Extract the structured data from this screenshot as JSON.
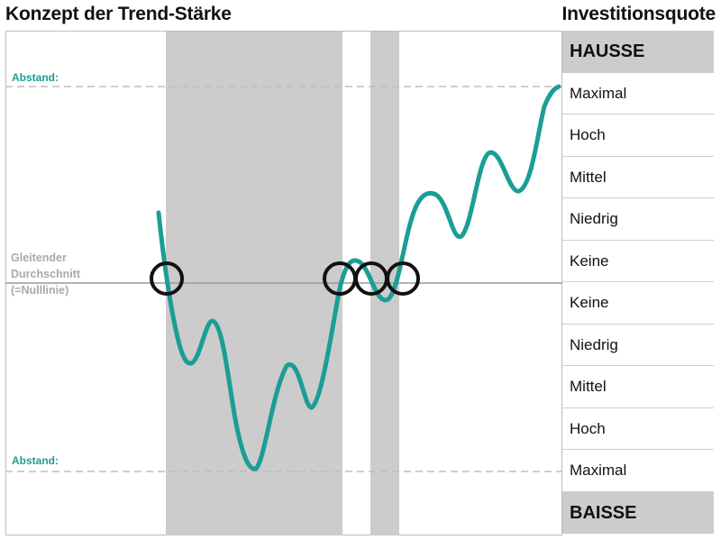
{
  "title_left": "Konzept der Trend-Stärke",
  "title_right": "Investitionsquote",
  "labels": {
    "abstand_top": "Abstand:",
    "abstand_bottom": "Abstand:",
    "moving_average": [
      "Gleitender",
      "Durchschnitt",
      "(=Nulllinie)"
    ]
  },
  "scale": {
    "hausse": "HAUSSE",
    "upper": [
      "Maximal",
      "Hoch",
      "Mittel",
      "Niedrig",
      "Keine"
    ],
    "lower": [
      "Keine",
      "Niedrig",
      "Mittel",
      "Hoch",
      "Maximal"
    ],
    "baisse": "BAISSE"
  },
  "colors": {
    "curve": "#1a9e95",
    "shade": "#cccccc",
    "grid": "#bdbdbd",
    "circle": "#111111"
  }
}
